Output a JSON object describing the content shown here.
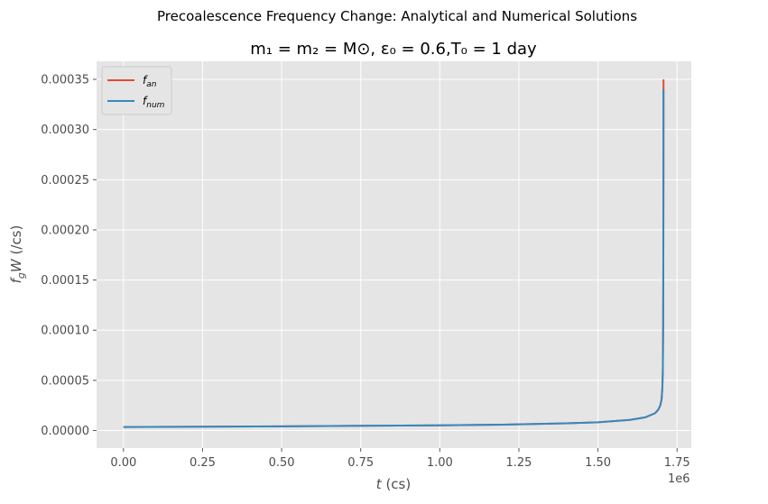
{
  "chart_data": {
    "type": "line",
    "suptitle": "Precoalescence Frequency Change: Analytical and Numerical Solutions",
    "title": "m₁ = m₂ = M⊙, ε₀ = 0.6,T₀ = 1 day",
    "xlabel": "t (cs)",
    "ylabel": "f_gW (/cs)",
    "x_offset_label": "1e6",
    "xlim": [
      -0.085,
      1.795
    ],
    "ylim": [
      -1.75e-05,
      0.000368
    ],
    "x_ticks": [
      0,
      0.25,
      0.5,
      0.75,
      1.0,
      1.25,
      1.5,
      1.75
    ],
    "x_tick_labels": [
      "0.00",
      "0.25",
      "0.50",
      "0.75",
      "1.00",
      "1.25",
      "1.50",
      "1.75"
    ],
    "y_ticks": [
      0,
      5e-05,
      0.0001,
      0.00015,
      0.0002,
      0.00025,
      0.0003,
      0.00035
    ],
    "y_tick_labels": [
      "0.00000",
      "0.00005",
      "0.00010",
      "0.00015",
      "0.00020",
      "0.00025",
      "0.00030",
      "0.00035"
    ],
    "grid": true,
    "legend_position": "top-left",
    "series": [
      {
        "name": "f_an",
        "legend_main": "f",
        "legend_sub": "an",
        "color": "#e24a33",
        "x": [
          0,
          0.25,
          0.5,
          0.75,
          1.0,
          1.2,
          1.4,
          1.5,
          1.6,
          1.65,
          1.68,
          1.69,
          1.697,
          1.701,
          1.7035,
          1.705,
          1.706,
          1.7065,
          1.707,
          1.7072
        ],
        "y": [
          3.5e-06,
          3.8e-06,
          4.2e-06,
          4.7e-06,
          5.2e-06,
          5.9e-06,
          7.2e-06,
          8.2e-06,
          1.06e-05,
          1.32e-05,
          1.72e-05,
          2.05e-05,
          2.5e-05,
          3.1e-05,
          4.2e-05,
          6e-05,
          0.0001,
          0.00016,
          0.00026,
          0.00035
        ]
      },
      {
        "name": "f_num",
        "legend_main": "f",
        "legend_sub": "num",
        "color": "#348abd",
        "x": [
          0,
          0.25,
          0.5,
          0.75,
          1.0,
          1.2,
          1.4,
          1.5,
          1.6,
          1.65,
          1.68,
          1.69,
          1.697,
          1.701,
          1.7035,
          1.705,
          1.706,
          1.7065,
          1.707,
          1.7071
        ],
        "y": [
          3.5e-06,
          3.8e-06,
          4.2e-06,
          4.7e-06,
          5.2e-06,
          5.9e-06,
          7.2e-06,
          8.2e-06,
          1.06e-05,
          1.32e-05,
          1.72e-05,
          2.05e-05,
          2.5e-05,
          3.1e-05,
          4.2e-05,
          6e-05,
          0.0001,
          0.00016,
          0.00026,
          0.00034
        ]
      }
    ]
  }
}
